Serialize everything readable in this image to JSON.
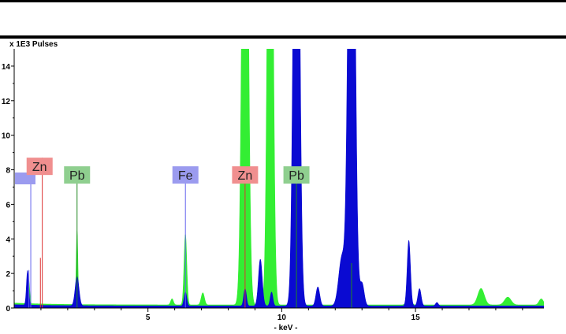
{
  "chart_data": {
    "type": "area",
    "title": "",
    "ylabel": "x 1E3 Pulses",
    "xlabel": "- keV -",
    "xlim": [
      0.0,
      19.8
    ],
    "ylim": [
      0,
      15
    ],
    "xticks": [
      5,
      10,
      15
    ],
    "yticks": [
      0,
      2,
      4,
      6,
      8,
      10,
      12,
      14
    ],
    "grid": false,
    "colors": {
      "green": "#33ee33",
      "blue": "#0a0ad2"
    },
    "series": [
      {
        "color": "green",
        "baseline": 0.18,
        "peaks": [
          {
            "center": 0.55,
            "height": 1.3,
            "width": 0.03
          },
          {
            "center": 2.35,
            "height": 4.3,
            "width": 0.03
          },
          {
            "center": 6.4,
            "height": 4.1,
            "width": 0.05
          },
          {
            "center": 7.05,
            "height": 0.7,
            "width": 0.06
          },
          {
            "center": 5.9,
            "height": 0.35,
            "width": 0.05
          },
          {
            "center": 8.63,
            "height": 40,
            "width": 0.1
          },
          {
            "center": 9.57,
            "height": 40,
            "width": 0.09
          },
          {
            "center": 10.55,
            "height": 0.7,
            "width": 0.06
          },
          {
            "center": 12.6,
            "height": 1.0,
            "width": 0.06
          },
          {
            "center": 14.75,
            "height": 0.45,
            "width": 0.08
          },
          {
            "center": 17.45,
            "height": 0.95,
            "width": 0.12
          },
          {
            "center": 18.45,
            "height": 0.45,
            "width": 0.12
          },
          {
            "center": 19.7,
            "height": 0.35,
            "width": 0.08
          }
        ]
      },
      {
        "color": "blue",
        "baseline": 0.12,
        "peaks": [
          {
            "center": 0.5,
            "height": 2.0,
            "width": 0.04
          },
          {
            "center": 2.35,
            "height": 1.7,
            "width": 0.07
          },
          {
            "center": 6.4,
            "height": 0.8,
            "width": 0.05
          },
          {
            "center": 8.63,
            "height": 1.0,
            "width": 0.05
          },
          {
            "center": 9.2,
            "height": 2.7,
            "width": 0.07
          },
          {
            "center": 9.62,
            "height": 0.8,
            "width": 0.05
          },
          {
            "center": 10.55,
            "height": 40,
            "width": 0.1
          },
          {
            "center": 11.35,
            "height": 1.1,
            "width": 0.07
          },
          {
            "center": 12.25,
            "height": 2.8,
            "width": 0.12
          },
          {
            "center": 12.61,
            "height": 40,
            "width": 0.11
          },
          {
            "center": 13.0,
            "height": 1.3,
            "width": 0.08
          },
          {
            "center": 14.75,
            "height": 3.8,
            "width": 0.06
          },
          {
            "center": 15.15,
            "height": 1.0,
            "width": 0.06
          },
          {
            "center": 15.8,
            "height": 0.2,
            "width": 0.05
          }
        ]
      }
    ],
    "element_lines": [
      {
        "x": 0.55,
        "y": 2.2,
        "color": "#6666ee"
      },
      {
        "x": 0.62,
        "y": 8.1,
        "color": "#6666ee"
      },
      {
        "x": 1.05,
        "y": 8.7,
        "color": "#dd3333"
      },
      {
        "x": 0.98,
        "y": 2.9,
        "color": "#dd3333"
      },
      {
        "x": 2.35,
        "y": 8.1,
        "color": "#228822"
      },
      {
        "x": 6.4,
        "y": 8.1,
        "color": "#6666ee"
      },
      {
        "x": 8.63,
        "y": 8.1,
        "color": "#dd3333"
      },
      {
        "x": 10.55,
        "y": 8.1,
        "color": "#228822"
      },
      {
        "x": 12.61,
        "y": 2.6,
        "color": "#228822"
      }
    ],
    "annotations": [
      {
        "text": "Zn",
        "x": 0.95,
        "y": 8.2,
        "color": "red"
      },
      {
        "text": "Pb",
        "x": 2.35,
        "y": 7.7,
        "color": "green"
      },
      {
        "text": "Fe",
        "x": 6.4,
        "y": 7.7,
        "color": "blue"
      },
      {
        "text": "Zn",
        "x": 8.63,
        "y": 7.7,
        "color": "red"
      },
      {
        "text": "Pb",
        "x": 10.55,
        "y": 7.7,
        "color": "green"
      }
    ],
    "label_colors": {
      "red": "#f08f8f",
      "green": "#8fcf8f",
      "blue": "#9b9bef"
    }
  }
}
